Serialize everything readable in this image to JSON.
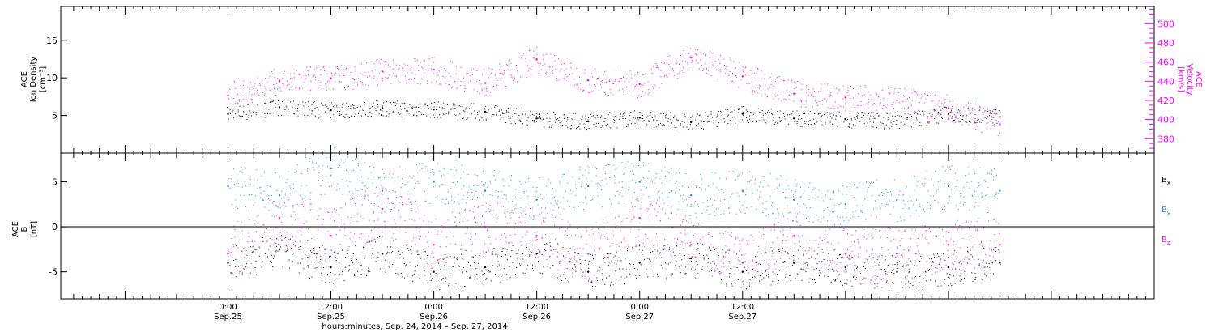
{
  "chart_data": [
    {
      "type": "scatter",
      "panel": "top",
      "left_ylabel_lines": [
        "ACE",
        "Ion Density",
        "[cm⁻³]"
      ],
      "right_ylabel_lines": [
        "ACE",
        "Velocity",
        "[km/s]"
      ],
      "left_yticks": [
        5,
        10,
        15
      ],
      "right_yticks": [
        380,
        400,
        420,
        440,
        460,
        480,
        500
      ],
      "left_ylim": [
        0,
        19.5
      ],
      "right_ylim": [
        365,
        518
      ],
      "colors": {
        "density": "#000000",
        "velocity": "#ff00ff"
      },
      "series": [
        {
          "name": "",
          "axis": "left",
          "color": "#000000",
          "x": [
            0,
            6,
            12,
            18,
            24,
            30,
            36,
            42,
            48,
            54,
            60,
            66,
            72,
            78,
            84,
            90
          ],
          "values": [
            5.2,
            6.1,
            5.7,
            6.0,
            5.8,
            5.5,
            4.6,
            4.2,
            4.7,
            4.1,
            5.2,
            4.6,
            4.5,
            4.3,
            5.2,
            4.8
          ]
        },
        {
          "name": "",
          "axis": "right",
          "color": "#ff00ff",
          "x": [
            0,
            6,
            12,
            18,
            24,
            30,
            36,
            42,
            48,
            54,
            60,
            66,
            72,
            78,
            84,
            90
          ],
          "values": [
            425,
            440,
            443,
            450,
            452,
            438,
            463,
            441,
            437,
            465,
            445,
            427,
            423,
            420,
            412,
            395
          ]
        }
      ]
    },
    {
      "type": "scatter",
      "panel": "bottom",
      "ylabel_lines": [
        "ACE",
        "B",
        "[nT]"
      ],
      "yticks": [
        -5,
        0,
        5
      ],
      "ylim": [
        -8,
        8.2
      ],
      "series": [
        {
          "name": "Bx",
          "label_main": "B",
          "label_sub": "x",
          "color": "#000000",
          "x": [
            0,
            6,
            12,
            18,
            24,
            30,
            36,
            42,
            48,
            54,
            60,
            66,
            72,
            78,
            84,
            90
          ],
          "values": [
            -4,
            -2.5,
            -4.5,
            -3,
            -5,
            -4.5,
            -3,
            -5,
            -4,
            -3.5,
            -5,
            -4,
            -4.5,
            -5,
            -4.5,
            -4
          ]
        },
        {
          "name": "By",
          "label_main": "B",
          "label_sub": "y",
          "color": "#1a8be6",
          "x": [
            0,
            6,
            12,
            18,
            24,
            30,
            36,
            42,
            48,
            54,
            60,
            66,
            72,
            78,
            84,
            90
          ],
          "values": [
            4.5,
            3.5,
            6.5,
            4,
            5,
            4,
            3,
            4.5,
            5,
            3.5,
            4,
            3,
            2.5,
            3,
            4.5,
            4
          ]
        },
        {
          "name": "Bz",
          "label_main": "B",
          "label_sub": "z",
          "color": "#ff00ff",
          "x": [
            0,
            6,
            12,
            18,
            24,
            30,
            36,
            42,
            48,
            54,
            60,
            66,
            72,
            78,
            84,
            90
          ],
          "values": [
            -3,
            1,
            -1,
            2,
            -2,
            0,
            -1,
            -3,
            1,
            -2,
            -4,
            -1,
            -3,
            -3,
            -2,
            -2
          ]
        }
      ]
    }
  ],
  "xaxis": {
    "x_min_hours": -19.5,
    "x_max_hours": 108,
    "ticks": [
      {
        "hours": 0,
        "time": "0:00",
        "date": "Sep.25"
      },
      {
        "hours": 12,
        "time": "12:00",
        "date": "Sep.25"
      },
      {
        "hours": 24,
        "time": "0:00",
        "date": "Sep.26"
      },
      {
        "hours": 36,
        "time": "12:00",
        "date": "Sep.26"
      },
      {
        "hours": 48,
        "time": "0:00",
        "date": "Sep.27"
      },
      {
        "hours": 60,
        "time": "12:00",
        "date": "Sep.27"
      }
    ],
    "title": "hours:minutes, Sep. 24, 2014 – Sep. 27, 2014"
  }
}
